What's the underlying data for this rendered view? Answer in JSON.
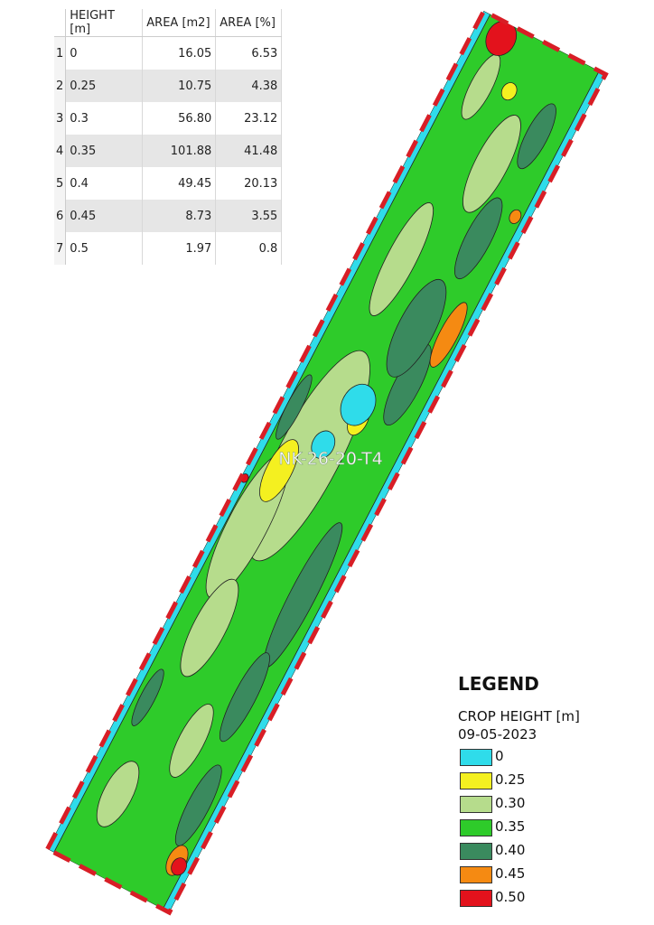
{
  "table": {
    "headers": [
      "HEIGHT [m]",
      "AREA [m2]",
      "AREA [%]"
    ],
    "rows": [
      [
        "1",
        "0",
        "16.05",
        "6.53"
      ],
      [
        "2",
        "0.25",
        "10.75",
        "4.38"
      ],
      [
        "3",
        "0.3",
        "56.80",
        "23.12"
      ],
      [
        "4",
        "0.35",
        "101.88",
        "41.48"
      ],
      [
        "5",
        "0.4",
        "49.45",
        "20.13"
      ],
      [
        "6",
        "0.45",
        "8.73",
        "3.55"
      ],
      [
        "7",
        "0.5",
        "1.97",
        "0.8"
      ]
    ]
  },
  "map": {
    "label": "NK-26-20-T4"
  },
  "legend": {
    "title": "LEGEND",
    "subtitle": "CROP HEIGHT [m]",
    "date": "09-05-2023",
    "items": [
      {
        "label": "0",
        "color": "#2fdcea"
      },
      {
        "label": "0.25",
        "color": "#f4f020"
      },
      {
        "label": "0.30",
        "color": "#b6dc8c"
      },
      {
        "label": "0.35",
        "color": "#2ecb2a"
      },
      {
        "label": "0.40",
        "color": "#3a8a5e"
      },
      {
        "label": "0.45",
        "color": "#f58a12"
      },
      {
        "label": "0.50",
        "color": "#e3121c"
      }
    ]
  }
}
